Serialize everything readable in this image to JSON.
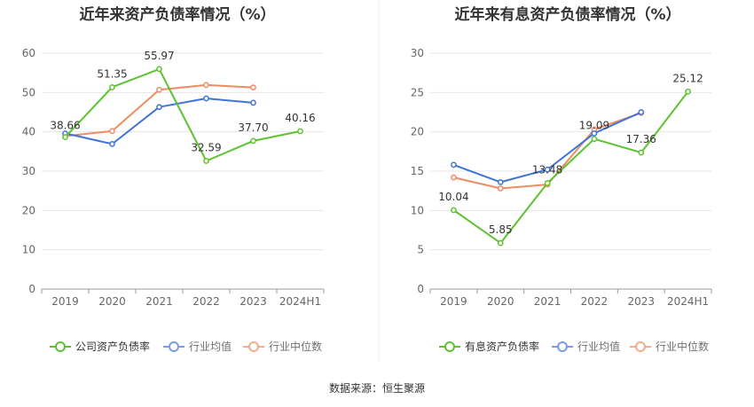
{
  "source": "数据来源：恒生聚源",
  "colors": {
    "main": "#5cc22f",
    "avg": "#3f73d8",
    "median": "#f08a62",
    "grid": "#e6e6e6",
    "axis": "#999999"
  },
  "chart_data": [
    {
      "type": "line",
      "title": "近年来资产负债率情况（%）",
      "categories": [
        "2019",
        "2020",
        "2021",
        "2022",
        "2023",
        "2024H1"
      ],
      "ylim": [
        0,
        60
      ],
      "yticks": [
        "0",
        "10",
        "20",
        "30",
        "40",
        "50",
        "60"
      ],
      "grid": true,
      "legend_position": "bottom",
      "series": [
        {
          "name": "公司资产负债率",
          "values": [
            38.66,
            51.35,
            55.97,
            32.59,
            37.7,
            40.16
          ],
          "labels": [
            "38.66",
            "51.35",
            "55.97",
            "32.59",
            "37.70",
            "40.16"
          ]
        },
        {
          "name": "行业均值",
          "values": [
            39.6,
            36.9,
            46.3,
            48.5,
            47.4,
            null
          ]
        },
        {
          "name": "行业中位数",
          "values": [
            38.9,
            40.2,
            50.7,
            51.9,
            51.3,
            null
          ]
        }
      ]
    },
    {
      "type": "line",
      "title": "近年来有息资产负债率情况（%）",
      "categories": [
        "2019",
        "2020",
        "2021",
        "2022",
        "2023",
        "2024H1"
      ],
      "ylim": [
        0,
        30
      ],
      "yticks": [
        "0",
        "5",
        "10",
        "15",
        "20",
        "25",
        "30"
      ],
      "grid": true,
      "legend_position": "bottom",
      "series": [
        {
          "name": "有息资产负债率",
          "values": [
            10.04,
            5.85,
            13.48,
            19.09,
            17.36,
            25.12
          ],
          "labels": [
            "10.04",
            "5.85",
            "13.48",
            "19.09",
            "17.36",
            "25.12"
          ]
        },
        {
          "name": "行业均值",
          "values": [
            15.8,
            13.6,
            15.2,
            19.8,
            22.5,
            null
          ]
        },
        {
          "name": "行业中位数",
          "values": [
            14.2,
            12.8,
            13.3,
            20.3,
            22.4,
            null
          ]
        }
      ]
    }
  ]
}
